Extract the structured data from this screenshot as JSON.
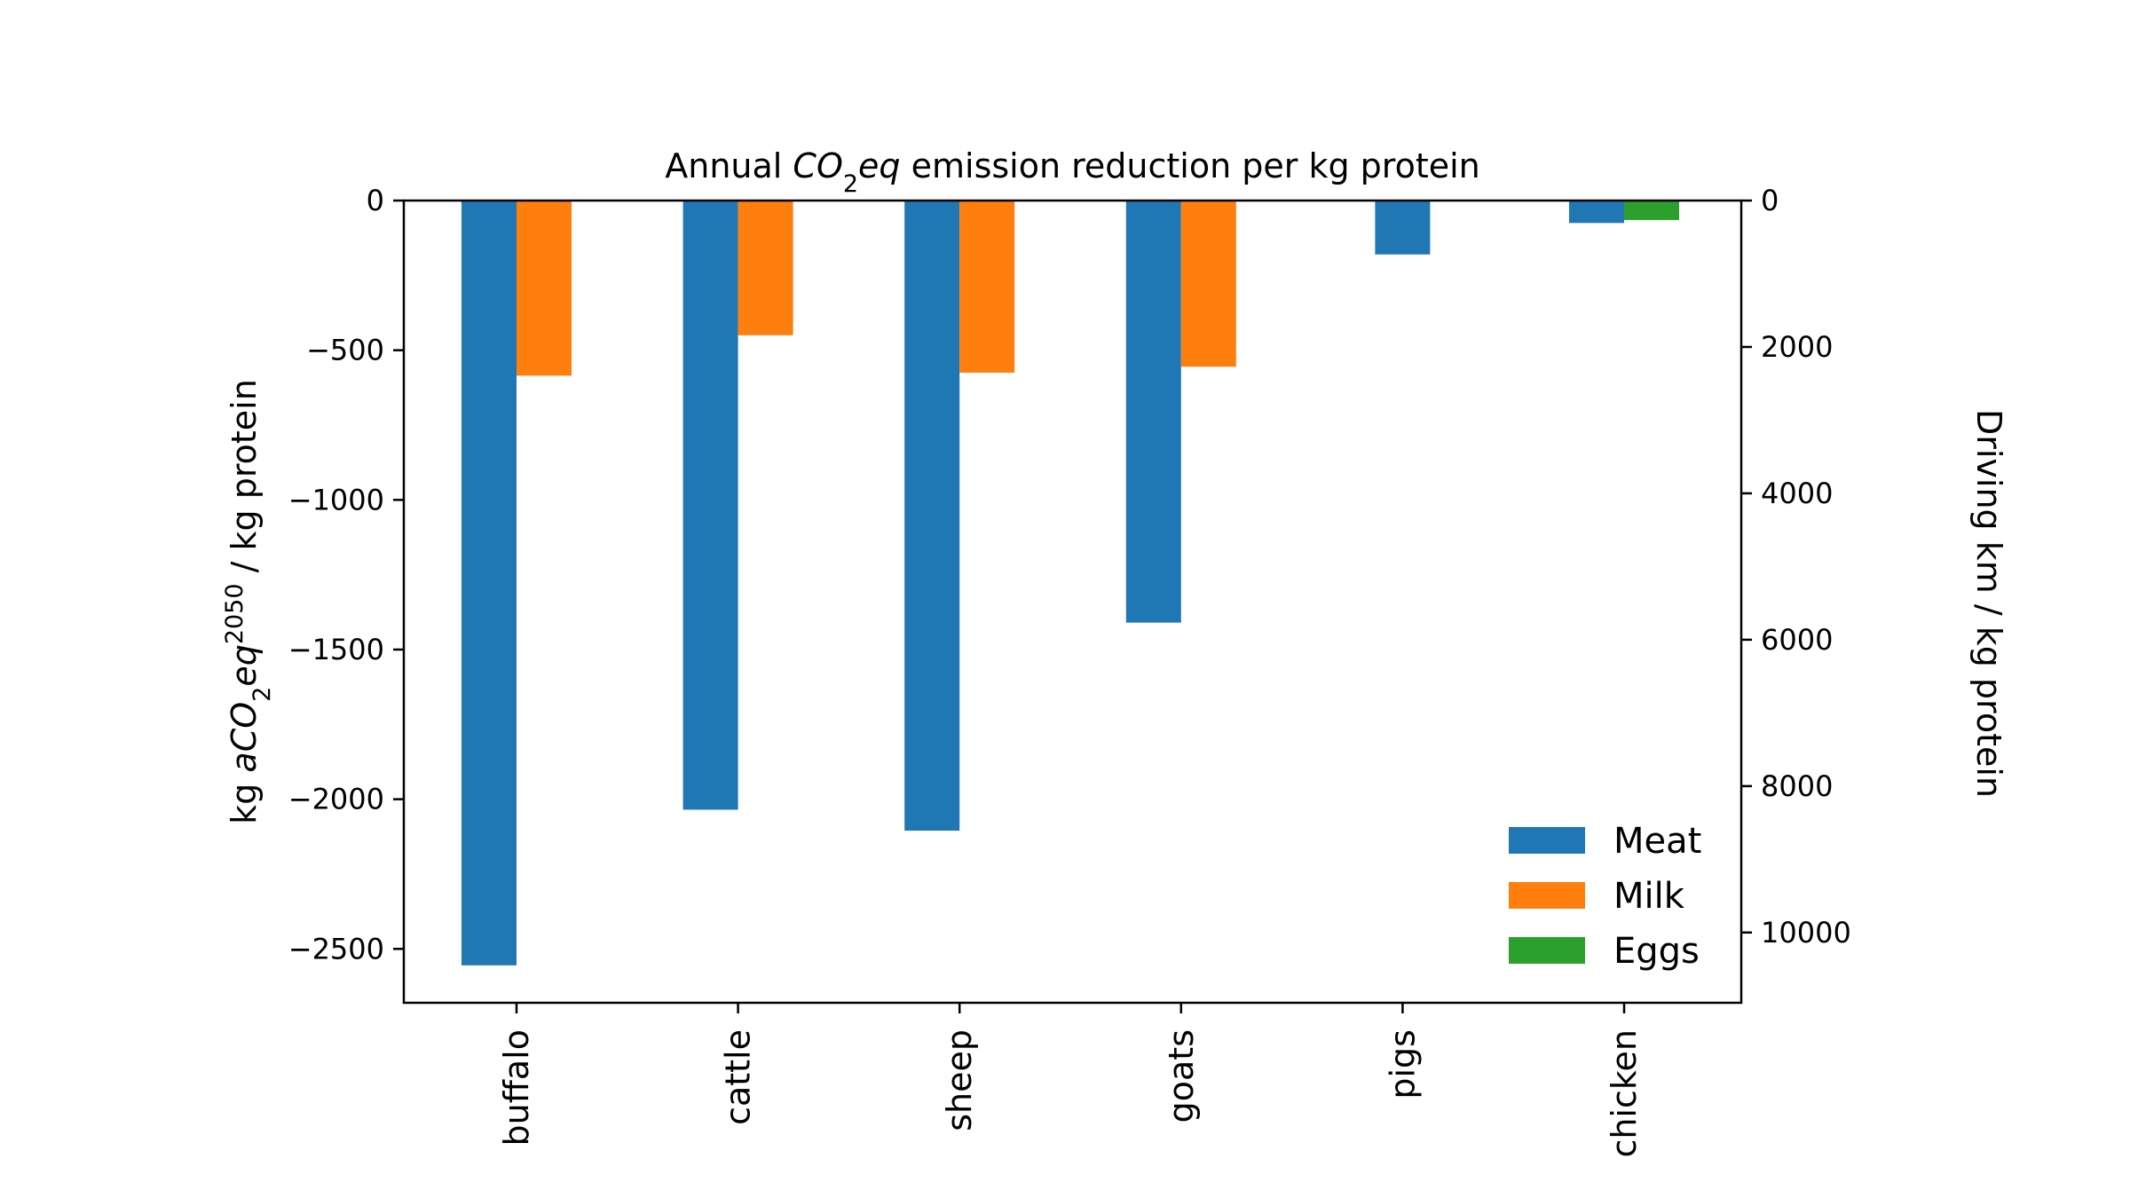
{
  "chart_data": {
    "type": "bar",
    "title": {
      "prefix": "Annual ",
      "italic_main": "CO",
      "sub": "2",
      "italic_tail": "eq",
      "suffix": " emission reduction per kg protein"
    },
    "ylabel": {
      "prefix": "kg ",
      "italic_main": "aCO",
      "sub": "2",
      "italic_mid": "eq",
      "sup": "2050",
      "suffix": " / kg protein"
    },
    "ylabel_right": "Driving km / kg protein",
    "categories": [
      "buffalo",
      "cattle",
      "sheep",
      "goats",
      "pigs",
      "chicken"
    ],
    "series": [
      {
        "name": "Meat",
        "color": "#1f77b4",
        "values": [
          -2555,
          -2035,
          -2105,
          -1410,
          -180,
          -75
        ]
      },
      {
        "name": "Milk",
        "color": "#ff7f0e",
        "values": [
          -585,
          -450,
          -575,
          -555,
          null,
          null
        ]
      },
      {
        "name": "Eggs",
        "color": "#2ca02c",
        "values": [
          null,
          null,
          null,
          null,
          null,
          -65
        ]
      }
    ],
    "ylim": [
      -2680,
      0
    ],
    "yticks": [
      0,
      -500,
      -1000,
      -1500,
      -2000,
      -2500
    ],
    "ytick_labels": [
      "0",
      "−500",
      "−1000",
      "−1500",
      "−2000",
      "−2500"
    ],
    "y2lim": [
      0,
      10960
    ],
    "y2ticks": [
      0,
      2000,
      4000,
      6000,
      8000,
      10000
    ],
    "y2tick_labels": [
      "0",
      "2000",
      "4000",
      "6000",
      "8000",
      "10000"
    ],
    "legend_position": "lower-right",
    "grid": false
  }
}
